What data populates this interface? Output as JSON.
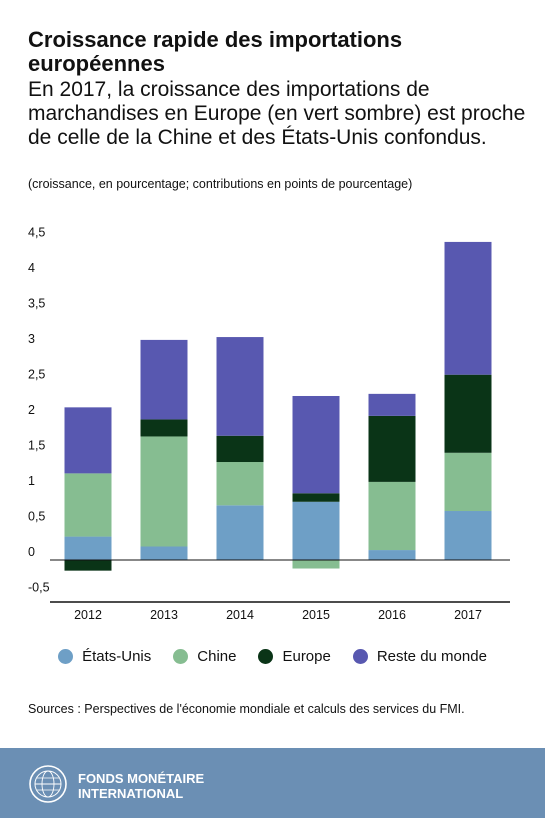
{
  "header": {
    "title": "Croissance rapide des importations européennes",
    "subtitle": "En 2017, la croissance des importations de marchandises en Europe (en vert sombre) est proche de celle de la Chine et des États-Unis confondus.",
    "units": "(croissance, en pourcentage; contributions en points de pourcentage)"
  },
  "chart_data": {
    "type": "bar",
    "stacked": true,
    "categories": [
      "2012",
      "2013",
      "2014",
      "2015",
      "2016",
      "2017"
    ],
    "series": [
      {
        "name": "États-Unis",
        "color": "#6e9fc6",
        "values": [
          0.33,
          0.19,
          0.77,
          0.82,
          0.14,
          0.69
        ]
      },
      {
        "name": "Chine",
        "color": "#86bd91",
        "values": [
          0.89,
          1.55,
          0.61,
          -0.12,
          0.96,
          0.82
        ]
      },
      {
        "name": "Europe",
        "color": "#0a3417",
        "values": [
          -0.15,
          0.24,
          0.37,
          0.12,
          0.93,
          1.1
        ]
      },
      {
        "name": "Reste du monde",
        "color": "#5858b0",
        "values": [
          0.93,
          1.12,
          1.39,
          1.37,
          0.31,
          1.87
        ]
      }
    ],
    "yticks": [
      "4,5",
      "4",
      "3,5",
      "3",
      "2,5",
      "2",
      "1,5",
      "1",
      "0,5",
      "0",
      "-0,5"
    ],
    "ylim": [
      -0.6,
      4.5
    ],
    "grid": false,
    "legend": "bottom"
  },
  "sources": "Sources : Perspectives de l'économie mondiale et calculs des services du FMI.",
  "footer": {
    "org_line1": "FONDS MONÉTAIRE",
    "org_line2": "INTERNATIONAL"
  }
}
